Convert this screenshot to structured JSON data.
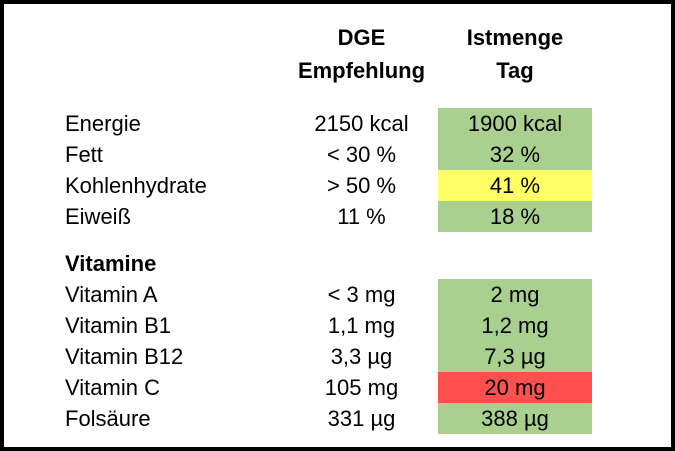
{
  "header": {
    "dge_line1": "DGE",
    "dge_line2": "Empfehlung",
    "ist_line1": "Istmenge",
    "ist_line2": "Tag"
  },
  "colors": {
    "ok_green": "#A9D08E",
    "warn_yellow": "#FFFF66",
    "bad_red": "#FF5050",
    "border": "#000000",
    "background": "#FFFFFF"
  },
  "chart_data": {
    "type": "table",
    "title": "",
    "columns": [
      "",
      "DGE Empfehlung",
      "Istmenge Tag"
    ],
    "rows": [
      {
        "label": "Energie",
        "dge": "2150 kcal",
        "ist": "1900 kcal",
        "status": "green",
        "color": "#A9D08E"
      },
      {
        "label": "Fett",
        "dge": "< 30 %",
        "ist": "32 %",
        "status": "green",
        "color": "#A9D08E"
      },
      {
        "label": "Kohlenhydrate",
        "dge": "> 50 %",
        "ist": "41 %",
        "status": "yellow",
        "color": "#FFFF66"
      },
      {
        "label": "Eiweiß",
        "dge": "11 %",
        "ist": "18 %",
        "status": "green",
        "color": "#A9D08E"
      },
      {
        "label": "Vitamine",
        "dge": "",
        "ist": "",
        "status": "section",
        "color": ""
      },
      {
        "label": "Vitamin A",
        "dge": "< 3 mg",
        "ist": "2 mg",
        "status": "green",
        "color": "#A9D08E"
      },
      {
        "label": "Vitamin B1",
        "dge": "1,1 mg",
        "ist": "1,2 mg",
        "status": "green",
        "color": "#A9D08E"
      },
      {
        "label": "Vitamin B12",
        "dge": "3,3 µg",
        "ist": "7,3 µg",
        "status": "green",
        "color": "#A9D08E"
      },
      {
        "label": "Vitamin C",
        "dge": "105 mg",
        "ist": "20 mg",
        "status": "red",
        "color": "#FF5050"
      },
      {
        "label": "Folsäure",
        "dge": "331 µg",
        "ist": "388 µg",
        "status": "green",
        "color": "#A9D08E"
      }
    ]
  }
}
